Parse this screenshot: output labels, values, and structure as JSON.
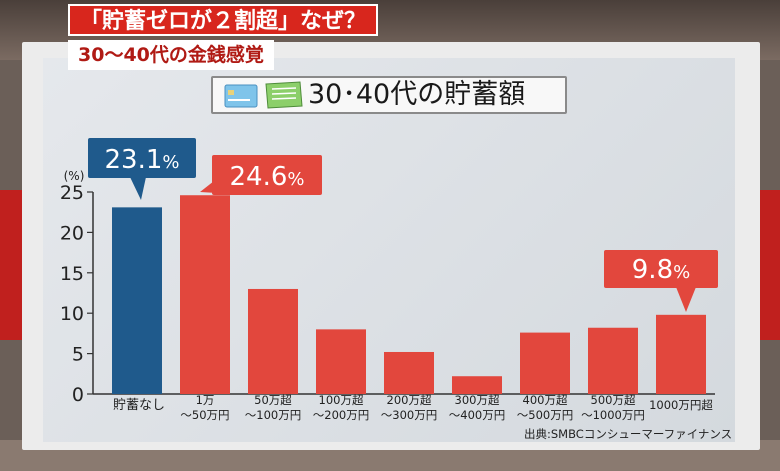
{
  "headline": "「貯蓄ゼロが２割超」なぜ？",
  "subheadline": "30〜40代の金銭感覚",
  "source": "出典:SMBCコンシューマーファイナンス",
  "icons": [
    "credit-card-icon",
    "bankbook-icon"
  ],
  "colors": {
    "highlight_bar": "#1f5a8c",
    "bar": "#e2473d",
    "headline_bg": "#d8261d",
    "callout_blue": "#1f5a8c",
    "callout_red": "#e2473d"
  },
  "chart_data": {
    "type": "bar",
    "title": "30･40代の貯蓄額",
    "ylabel": "(%)",
    "xlabel": "",
    "ylim": [
      0,
      25
    ],
    "yticks": [
      0,
      5,
      10,
      15,
      20,
      25
    ],
    "grid": false,
    "categories": [
      [
        "貯蓄なし"
      ],
      [
        "1万",
        "〜50万円"
      ],
      [
        "50万超",
        "〜100万円"
      ],
      [
        "100万超",
        "〜200万円"
      ],
      [
        "200万超",
        "〜300万円"
      ],
      [
        "300万超",
        "〜400万円"
      ],
      [
        "400万超",
        "〜500万円"
      ],
      [
        "500万超",
        "〜1000万円"
      ],
      [
        "1000万円超"
      ]
    ],
    "values": [
      23.1,
      24.6,
      13.0,
      8.0,
      5.2,
      2.2,
      7.6,
      8.2,
      9.8
    ],
    "highlight_index": 0,
    "callouts": [
      {
        "index": 0,
        "value": "23.1",
        "unit": "%",
        "color": "blue"
      },
      {
        "index": 1,
        "value": "24.6",
        "unit": "%",
        "color": "red"
      },
      {
        "index": 8,
        "value": "9.8",
        "unit": "%",
        "color": "red"
      }
    ]
  }
}
